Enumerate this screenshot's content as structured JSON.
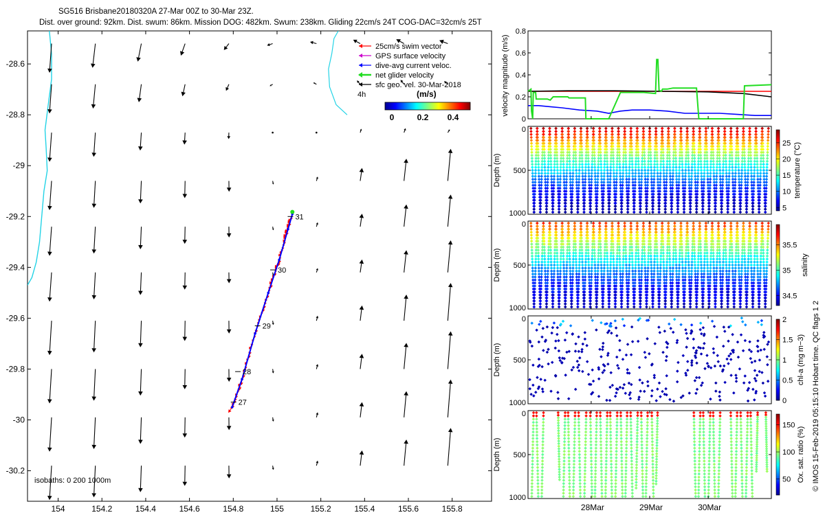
{
  "title_line1": "SG516 Brisbane20180320A 27-Mar 00Z to 30-Mar 23Z.",
  "title_line2": "Dist. over ground: 92km. Dist. swum: 86km. Mission DOG: 482km. Swum: 238km. Gliding 22cm/s 24T COG-DAC=32cm/s 25T",
  "colors": {
    "coast": "#22d3e6",
    "swim_vector": "#ff0000",
    "gps_surface": "#cc00cc",
    "dac": "#0000ff",
    "net_glider": "#22dd22",
    "sfc_geo": "#000000"
  },
  "chart_data": [
    {
      "id": "map",
      "type": "scatter",
      "xlim": [
        153.86,
        155.98
      ],
      "ylim": [
        -30.32,
        -28.47
      ],
      "xticks": [
        "154",
        "154.2",
        "154.4",
        "154.6",
        "154.8",
        "155",
        "155.2",
        "155.4",
        "155.6",
        "155.8"
      ],
      "xtick_values": [
        154,
        154.2,
        154.4,
        154.6,
        154.8,
        155,
        155.2,
        155.4,
        155.6,
        155.8
      ],
      "yticks": [
        "-28.6",
        "-28.8",
        "-29",
        "-29.2",
        "-29.4",
        "-29.6",
        "-29.8",
        "-30",
        "-30.2"
      ],
      "ytick_values": [
        -28.6,
        -28.8,
        -29,
        -29.2,
        -29.4,
        -29.6,
        -29.8,
        -30,
        -30.2
      ],
      "legend": [
        "25cm/s swim vector",
        "GPS surface velocity",
        "dive-avg current veloc.",
        "net glider velocity",
        "sfc geo. vel. 30-Mar-2018"
      ],
      "legend_extra": "4h",
      "colorbar_title": "(m/s)",
      "colorbar_ticks": [
        "0",
        "0.2",
        "0.4"
      ],
      "isobaths_label": "isobaths: 0   200  1000m",
      "track": [
        [
          154.795,
          -29.95
        ],
        [
          154.84,
          -29.84
        ],
        [
          154.9,
          -29.66
        ],
        [
          154.96,
          -29.5
        ],
        [
          155.01,
          -29.37
        ],
        [
          155.05,
          -29.25
        ],
        [
          155.07,
          -29.19
        ]
      ],
      "day_labels": [
        {
          "lon": 154.82,
          "lat": -29.93,
          "text": "27"
        },
        {
          "lon": 154.84,
          "lat": -29.81,
          "text": "28"
        },
        {
          "lon": 154.93,
          "lat": -29.63,
          "text": "29"
        },
        {
          "lon": 155.0,
          "lat": -29.41,
          "text": "30"
        },
        {
          "lon": 155.08,
          "lat": -29.2,
          "text": "31"
        }
      ],
      "geo_arrow_lons": [
        153.97,
        154.17,
        154.38,
        154.58,
        154.78,
        154.98,
        155.18,
        155.38,
        155.58,
        155.78
      ],
      "geo_arrow_lats": [
        -28.52,
        -28.68,
        -28.87,
        -29.06,
        -29.24,
        -29.42,
        -29.61,
        -29.8,
        -29.99,
        -30.18
      ],
      "coastline": [
        [
          153.96,
          -28.47
        ],
        [
          153.97,
          -28.56
        ],
        [
          153.97,
          -28.66
        ],
        [
          153.955,
          -28.76
        ],
        [
          153.94,
          -28.86
        ],
        [
          153.945,
          -28.93
        ],
        [
          153.95,
          -29.02
        ],
        [
          153.935,
          -29.1
        ],
        [
          153.925,
          -29.2
        ],
        [
          153.915,
          -29.3
        ],
        [
          153.9,
          -29.38
        ],
        [
          153.88,
          -29.44
        ],
        [
          153.86,
          -29.47
        ]
      ],
      "shelf_contour": [
        [
          155.28,
          -28.47
        ],
        [
          155.26,
          -28.5
        ],
        [
          155.25,
          -28.56
        ],
        [
          155.235,
          -28.62
        ],
        [
          155.24,
          -28.69
        ],
        [
          155.27,
          -28.76
        ],
        [
          155.32,
          -28.8
        ]
      ]
    },
    {
      "id": "velocity",
      "type": "line",
      "ylabel": "velocity magnitude (m/s)",
      "ylim": [
        0,
        0.8
      ],
      "yticks": [
        "0",
        "0.2",
        "0.4",
        "0.6",
        "0.8"
      ],
      "x_range_days": [
        26.92,
        31.08
      ],
      "series": [
        {
          "name": "swim",
          "color": "#ff0000",
          "x": [
            26.92,
            31.08
          ],
          "y": [
            0.25,
            0.25
          ]
        },
        {
          "name": "geo",
          "color": "#000000",
          "x": [
            26.92,
            27.6,
            28.4,
            29.2,
            30.0,
            30.6,
            31.08
          ],
          "y": [
            0.25,
            0.255,
            0.255,
            0.25,
            0.245,
            0.23,
            0.2
          ]
        },
        {
          "name": "dac",
          "color": "#0000ff",
          "x": [
            26.92,
            27.1,
            27.3,
            27.5,
            27.8,
            28.1,
            28.3,
            28.5,
            28.7,
            29.0,
            29.3,
            29.6,
            29.9,
            30.2,
            30.5,
            30.8,
            31.08
          ],
          "y": [
            0.12,
            0.12,
            0.11,
            0.1,
            0.08,
            0.07,
            0.05,
            0.07,
            0.08,
            0.08,
            0.07,
            0.05,
            0.05,
            0.05,
            0.04,
            0.03,
            0.03
          ]
        },
        {
          "name": "net",
          "color": "#22dd22",
          "x": [
            26.92,
            26.97,
            26.98,
            27.0,
            27.01,
            27.05,
            27.06,
            27.2,
            27.25,
            27.3,
            27.35,
            27.6,
            27.62,
            27.9,
            27.91,
            28.3,
            28.5,
            28.9,
            29.1,
            29.12,
            29.14,
            29.16,
            29.2,
            29.22,
            29.3,
            29.4,
            29.8,
            29.84,
            29.86,
            30.6,
            30.62,
            31.08
          ],
          "y": [
            0.25,
            0.27,
            0.07,
            0.0,
            0.24,
            0.24,
            0.18,
            0.18,
            0.18,
            0.17,
            0.2,
            0.2,
            0.19,
            0.19,
            0.0,
            0.0,
            0.24,
            0.24,
            0.23,
            0.54,
            0.54,
            0.26,
            0.25,
            0.27,
            0.27,
            0.28,
            0.28,
            0.0,
            0.0,
            0.0,
            0.3,
            0.31
          ]
        }
      ]
    },
    {
      "id": "temperature",
      "type": "scatter",
      "ylabel": "Depth (m)",
      "ylim": [
        0,
        1000
      ],
      "yticks": [
        "0",
        "500",
        "1000"
      ],
      "colorbar_label": "temperature (°C)",
      "colorbar_ticks": [
        "5",
        "10",
        "15",
        "20",
        "25"
      ],
      "colorbar_range": [
        4,
        29
      ],
      "profile_count": 38,
      "max_depth": 1000,
      "surface_value": 27,
      "deep_value": 5
    },
    {
      "id": "salinity",
      "type": "scatter",
      "ylabel": "Depth (m)",
      "ylim": [
        0,
        1000
      ],
      "yticks": [
        "0",
        "500",
        "1000"
      ],
      "colorbar_label": "salinity",
      "colorbar_ticks": [
        "34.5",
        "35",
        "35.5"
      ],
      "colorbar_range": [
        34.3,
        35.9
      ],
      "profile_count": 38,
      "max_depth": 1000,
      "surface_value": 35.6,
      "deep_value": 34.4
    },
    {
      "id": "chla",
      "type": "scatter",
      "ylabel": "Depth (m)",
      "ylim": [
        0,
        1000
      ],
      "yticks": [
        "0",
        "500",
        "1000"
      ],
      "colorbar_label": "chl-a (mg m−3)",
      "colorbar_ticks": [
        "0",
        "0.5",
        "1",
        "1.5",
        "2"
      ],
      "colorbar_range": [
        0,
        2
      ],
      "point_count": 360,
      "typical_value": 0.05
    },
    {
      "id": "oxygen",
      "type": "scatter",
      "ylabel": "Depth (m)",
      "ylim": [
        0,
        1000
      ],
      "yticks": [
        "0",
        "500",
        "1000"
      ],
      "colorbar_label": "Ox. sat. ratio (%)",
      "colorbar_ticks": [
        "50",
        "100",
        "150"
      ],
      "colorbar_range": [
        20,
        170
      ],
      "typical_value": 95,
      "surface_value": 150,
      "profile_days": [
        27.0,
        27.08,
        27.17,
        27.45,
        27.54,
        27.62,
        27.71,
        27.8,
        27.9,
        28.0,
        28.08,
        28.17,
        28.26,
        28.34,
        28.43,
        28.52,
        28.6,
        28.69,
        28.78,
        28.87,
        28.95,
        29.05,
        29.12,
        29.77,
        29.85,
        29.93,
        30.02,
        30.1,
        30.19,
        30.4,
        30.48,
        30.57,
        30.66,
        30.74,
        30.83,
        31.0
      ],
      "profile_depths": [
        1000,
        1000,
        1000,
        800,
        1000,
        1000,
        1000,
        1000,
        1000,
        1000,
        1000,
        1000,
        1000,
        1000,
        1000,
        1000,
        1000,
        1000,
        900,
        1000,
        1000,
        1000,
        850,
        1000,
        1000,
        1000,
        1000,
        1000,
        1000,
        1000,
        1000,
        1000,
        1000,
        1000,
        700,
        700
      ]
    }
  ],
  "x_axis_dates": [
    {
      "day": 28,
      "label": "28Mar"
    },
    {
      "day": 29,
      "label": "29Mar"
    },
    {
      "day": 30,
      "label": "30Mar"
    }
  ],
  "qc_caption": "Hobart time. QC flags 1  2",
  "footer_text": "© IMOS 15-Feb-2019 05:15:10"
}
